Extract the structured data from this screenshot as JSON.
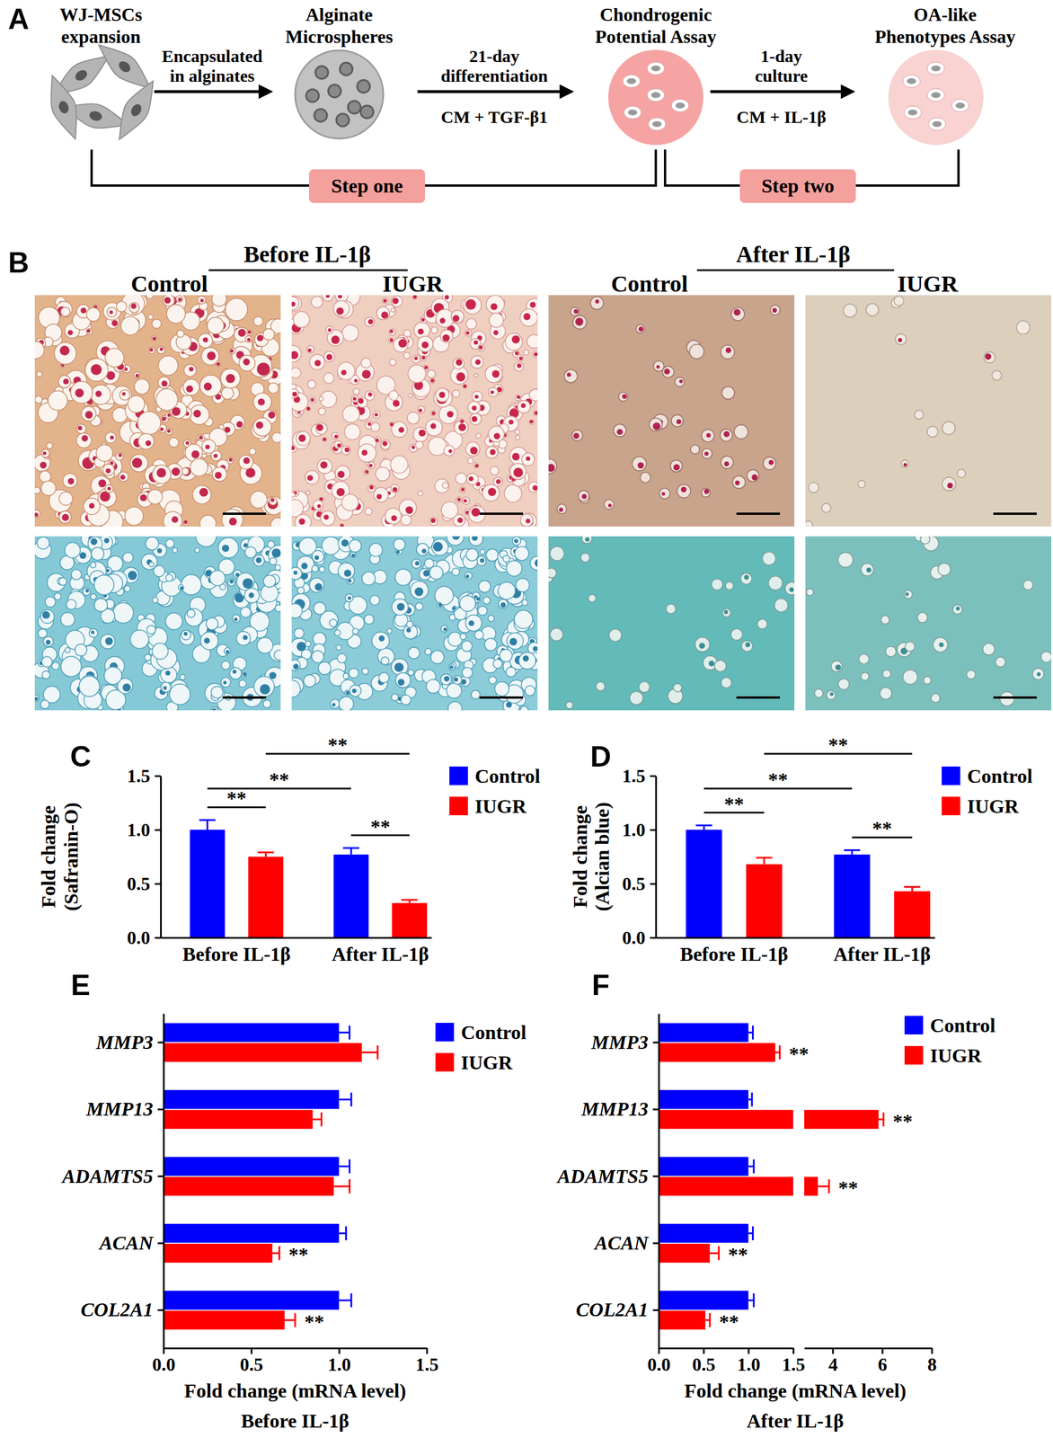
{
  "diagram": {
    "panel_label": "A",
    "nodes": [
      {
        "label": [
          "WJ-MSCs",
          "expansion"
        ]
      },
      {
        "label": [
          "Alginate",
          "Microspheres"
        ]
      },
      {
        "label": [
          "Chondrogenic",
          "Potential Assay"
        ]
      },
      {
        "label": [
          "OA-like",
          "Phenotypes Assay"
        ]
      }
    ],
    "arrows": [
      {
        "label": [
          "Encapsulated",
          "in alginates"
        ]
      },
      {
        "label": [
          "21-day",
          "differentiation"
        ],
        "sublabel": "CM + TGF-β1"
      },
      {
        "label": [
          "1-day",
          "culture"
        ],
        "sublabel": "CM + IL-1β"
      }
    ],
    "steps": [
      "Step one",
      "Step two"
    ]
  },
  "images": {
    "panel_label": "B",
    "groups": [
      {
        "title": "Before IL-1β",
        "columns": [
          "Control",
          "IUGR"
        ]
      },
      {
        "title": "After IL-1β",
        "columns": [
          "Control",
          "IUGR"
        ]
      }
    ]
  },
  "chart_data": [
    {
      "type": "bar",
      "panel_label": "C",
      "categories": [
        "Before IL-1β",
        "After IL-1β"
      ],
      "y_label": [
        "Fold change",
        "(Safranin-O)"
      ],
      "ylim": [
        0,
        1.5
      ],
      "yticks": [
        {
          "value": 0,
          "label": "0.0"
        },
        0.5,
        {
          "value": 1,
          "label": "1.0"
        },
        1.5
      ],
      "legend": "top-right",
      "series": [
        {
          "name": "Control",
          "color": "#0000ff",
          "values": [
            1.0,
            0.77
          ],
          "errors": [
            0.09,
            0.06
          ]
        },
        {
          "name": "IUGR",
          "color": "#ff0000",
          "values": [
            0.75,
            0.32
          ],
          "errors": [
            0.04,
            0.03
          ]
        }
      ],
      "annotations": [
        {
          "text": "**",
          "between": [
            [
              0,
              0
            ],
            [
              1,
              0
            ]
          ]
        },
        {
          "text": "**",
          "between": [
            [
              0,
              1
            ],
            [
              1,
              1
            ]
          ]
        },
        {
          "text": "**",
          "between": [
            [
              0,
              0
            ],
            [
              0,
              1
            ]
          ]
        },
        {
          "text": "**",
          "between": [
            [
              1,
              0
            ],
            [
              1,
              1
            ]
          ]
        }
      ]
    },
    {
      "type": "bar",
      "panel_label": "D",
      "categories": [
        "Before IL-1β",
        "After IL-1β"
      ],
      "y_label": [
        "Fold change",
        "(Alcian blue)"
      ],
      "ylim": [
        0,
        1.5
      ],
      "yticks": [
        {
          "value": 0,
          "label": "0.0"
        },
        0.5,
        {
          "value": 1,
          "label": "1.0"
        },
        1.5
      ],
      "legend": "top-right",
      "series": [
        {
          "name": "Control",
          "color": "#0000ff",
          "values": [
            1.0,
            0.77
          ],
          "errors": [
            0.04,
            0.04
          ]
        },
        {
          "name": "IUGR",
          "color": "#ff0000",
          "values": [
            0.68,
            0.43
          ],
          "errors": [
            0.06,
            0.04
          ]
        }
      ],
      "annotations": [
        {
          "text": "**",
          "between": [
            [
              0,
              0
            ],
            [
              1,
              0
            ]
          ]
        },
        {
          "text": "**",
          "between": [
            [
              0,
              1
            ],
            [
              1,
              1
            ]
          ]
        },
        {
          "text": "**",
          "between": [
            [
              0,
              0
            ],
            [
              0,
              1
            ]
          ]
        },
        {
          "text": "**",
          "between": [
            [
              1,
              0
            ],
            [
              1,
              1
            ]
          ]
        }
      ]
    },
    {
      "type": "bar",
      "orientation": "horizontal",
      "panel_label": "E",
      "categories": [
        "MMP3",
        "MMP13",
        "ADAMTS5",
        "ACAN",
        "COL2A1"
      ],
      "x_label": [
        "Fold change (mRNA level)",
        "Before IL-1β"
      ],
      "xlim": [
        0,
        1.5
      ],
      "xticks": [
        {
          "value": 0,
          "label": "0.0"
        },
        0.5,
        {
          "value": 1,
          "label": "1.0"
        },
        1.5
      ],
      "legend": "top-right",
      "series": [
        {
          "name": "Control",
          "color": "#0000ff",
          "values": [
            1.0,
            1.0,
            1.0,
            1.0,
            1.0
          ],
          "errors": [
            0.06,
            0.07,
            0.06,
            0.04,
            0.07
          ]
        },
        {
          "name": "IUGR",
          "color": "#ff0000",
          "values": [
            1.13,
            0.85,
            0.97,
            0.62,
            0.69
          ],
          "errors": [
            0.09,
            0.05,
            0.09,
            0.04,
            0.06
          ]
        }
      ],
      "annotations": [
        {
          "text": "**",
          "at": [
            1,
            3
          ]
        },
        {
          "text": "**",
          "at": [
            1,
            4
          ]
        }
      ]
    },
    {
      "type": "bar",
      "orientation": "horizontal",
      "panel_label": "F",
      "categories": [
        "MMP3",
        "MMP13",
        "ADAMTS5",
        "ACAN",
        "COL2A1"
      ],
      "x_label": [
        "Fold change (mRNA level)",
        "After IL-1β"
      ],
      "xlim": [
        [
          0,
          1.5
        ],
        [
          2.85,
          8
        ]
      ],
      "xticks": [
        {
          "value": 0,
          "label": "0.0"
        },
        0.5,
        {
          "value": 1,
          "label": "1.0"
        },
        1.5,
        4,
        6,
        8
      ],
      "legend": "top-right",
      "series": [
        {
          "name": "Control",
          "color": "#0000ff",
          "values": [
            1.0,
            1.0,
            1.0,
            1.0,
            1.0
          ],
          "errors": [
            0.05,
            0.04,
            0.06,
            0.05,
            0.06
          ]
        },
        {
          "name": "IUGR",
          "color": "#ff0000",
          "values": [
            1.3,
            5.85,
            3.4,
            0.57,
            0.52
          ],
          "errors": [
            0.05,
            0.2,
            0.45,
            0.1,
            0.05
          ]
        }
      ],
      "annotations": [
        {
          "text": "**",
          "at": [
            1,
            0
          ]
        },
        {
          "text": "**",
          "at": [
            1,
            1
          ]
        },
        {
          "text": "**",
          "at": [
            1,
            2
          ]
        },
        {
          "text": "**",
          "at": [
            1,
            3
          ]
        },
        {
          "text": "**",
          "at": [
            1,
            4
          ]
        }
      ]
    }
  ]
}
